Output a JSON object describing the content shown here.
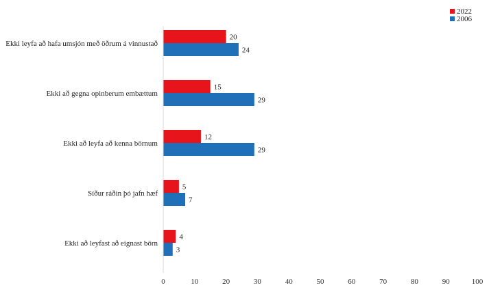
{
  "chart_data": {
    "type": "bar",
    "orientation": "horizontal",
    "categories": [
      "Ekki leyfa að hafa umsjón með öðrum á vinnustað",
      "Ekki að gegna opinberum embættum",
      "Ekki að leyfa að kenna börnum",
      "Síður ráðin þó jafn hæf",
      "Ekki að leyfast að eignast börn"
    ],
    "series": [
      {
        "name": "2022",
        "color": "#e8141c",
        "values": [
          20,
          15,
          12,
          5,
          4
        ]
      },
      {
        "name": "2006",
        "color": "#1f6fb9",
        "values": [
          24,
          29,
          29,
          7,
          3
        ]
      }
    ],
    "xlim": [
      0,
      100
    ],
    "xticks": [
      0,
      10,
      20,
      30,
      40,
      50,
      60,
      70,
      80,
      90,
      100
    ],
    "grid": false,
    "legend_position": "top-right",
    "title": "",
    "xlabel": "",
    "ylabel": ""
  }
}
